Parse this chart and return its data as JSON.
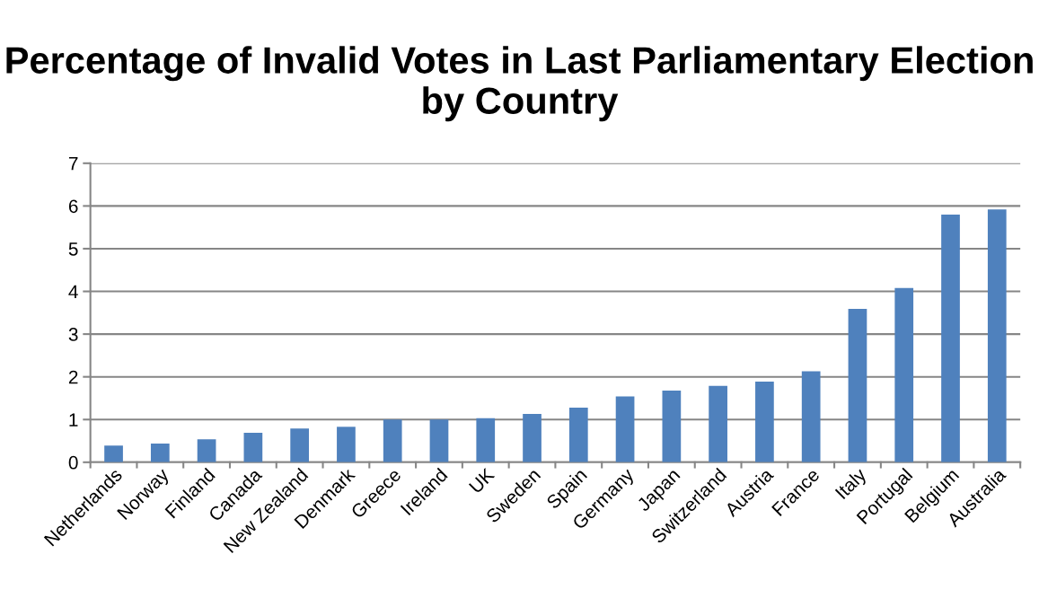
{
  "chart_data": {
    "type": "bar",
    "title": "Percentage of Invalid Votes in Last Parliamentary Election by Country",
    "categories": [
      "Netherlands",
      "Norway",
      "Finland",
      "Canada",
      "New Zealand",
      "Denmark",
      "Greece",
      "Ireland",
      "UK",
      "Sweden",
      "Spain",
      "Germany",
      "Japan",
      "Switzerland",
      "Austria",
      "France",
      "Italy",
      "Portugal",
      "Belgium",
      "Australia"
    ],
    "values": [
      0.39,
      0.44,
      0.54,
      0.69,
      0.79,
      0.83,
      1.0,
      1.0,
      1.03,
      1.13,
      1.28,
      1.54,
      1.68,
      1.79,
      1.89,
      2.13,
      3.59,
      4.08,
      5.8,
      5.92
    ],
    "color": "#4f81bd",
    "ylim": [
      0,
      7
    ],
    "yticks": [
      0,
      1,
      2,
      3,
      4,
      5,
      6,
      7
    ],
    "grid": "y",
    "legend": false
  }
}
